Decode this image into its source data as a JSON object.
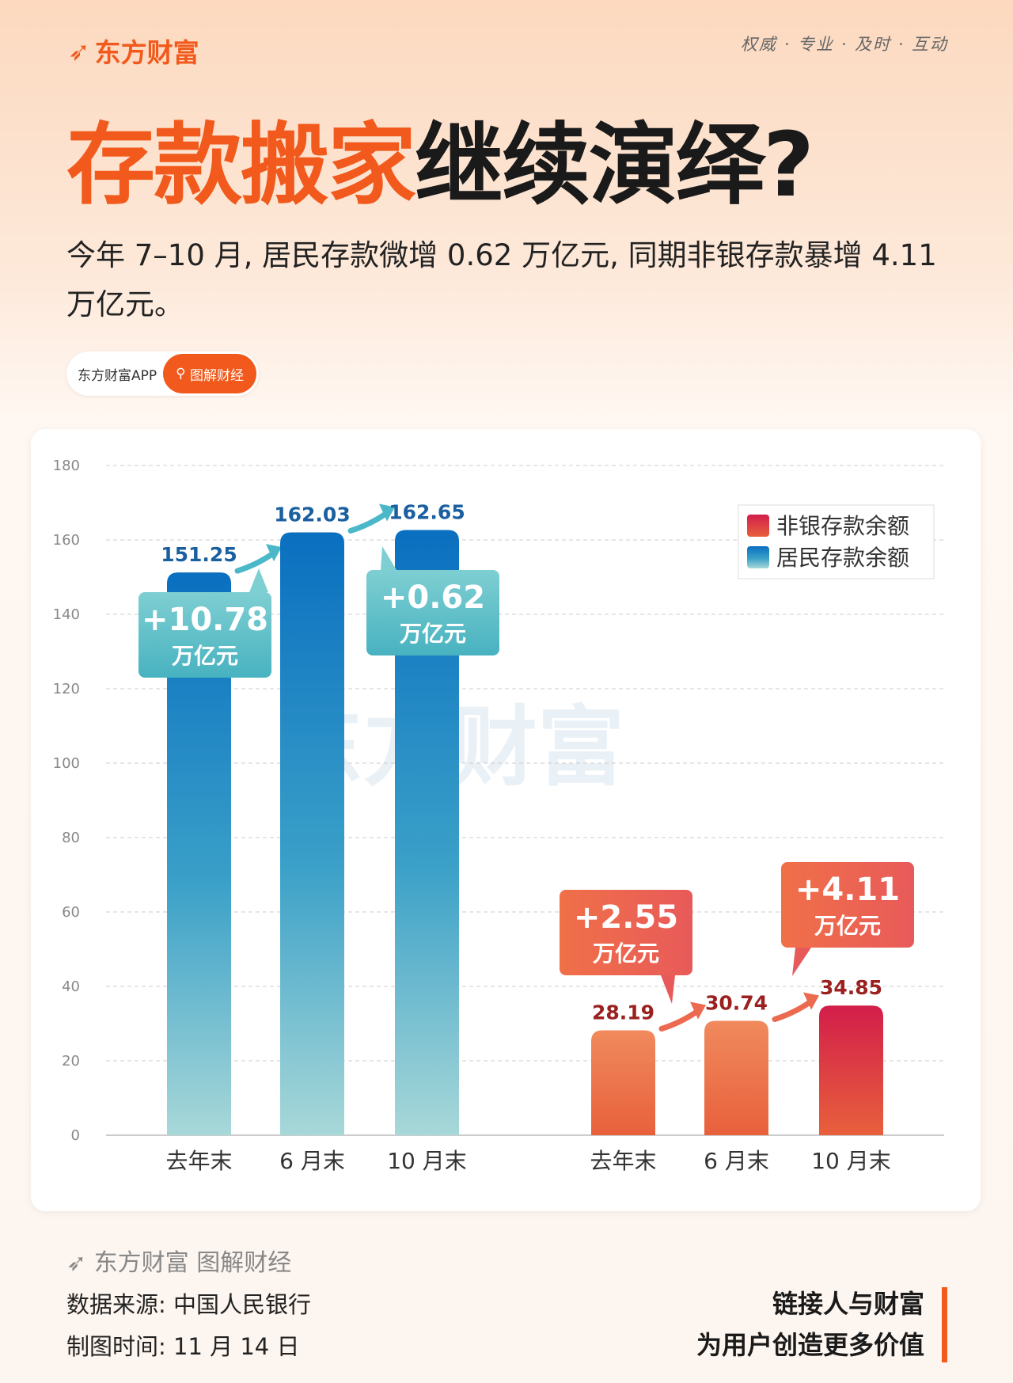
{
  "brand": {
    "logo": "东方财富",
    "slogan": "权威 · 专业 · 及时 · 互动",
    "accent": "#f15a1c"
  },
  "header": {
    "title_orange": "存款搬家",
    "title_black": "继续演绎?",
    "subtitle": "今年 7–10 月, 居民存款微增 0.62 万亿元, 同期非银存款暴增 4.11 万亿元。"
  },
  "pill": {
    "app": "东方财富APP",
    "search": "图解财经"
  },
  "chart_data": {
    "type": "bar",
    "ylim": [
      0,
      180
    ],
    "yticks": [
      0,
      20,
      40,
      60,
      80,
      100,
      120,
      140,
      160,
      180
    ],
    "grid": true,
    "legend": "top-right",
    "watermark": "东方财富",
    "groups": [
      {
        "name": "居民存款余额",
        "categories": [
          "去年末",
          "6 月末",
          "10 月末"
        ],
        "values": [
          151.25,
          162.03,
          162.65
        ],
        "labels": [
          "151.25",
          "162.03",
          "162.65"
        ],
        "color_top": "#0a6fc0",
        "color_bottom": "#a8d8d8",
        "callouts": [
          {
            "value": "+10.78",
            "unit": "万亿元"
          },
          {
            "value": "+0.62",
            "unit": "万亿元"
          }
        ]
      },
      {
        "name": "非银存款余额",
        "categories": [
          "去年末",
          "6 月末",
          "10 月末"
        ],
        "values": [
          28.19,
          30.74,
          34.85
        ],
        "labels": [
          "28.19",
          "30.74",
          "34.85"
        ],
        "color_top": "#f08a5d",
        "color_bottom": "#e8603c",
        "callouts": [
          {
            "value": "+2.55",
            "unit": "万亿元"
          },
          {
            "value": "+4.11",
            "unit": "万亿元"
          }
        ]
      }
    ],
    "legend_items": [
      "非银存款余额",
      "居民存款余额"
    ]
  },
  "footer": {
    "brand": "东方财富 图解财经",
    "source": "数据来源: 中国人民银行",
    "date": "制图时间: 11 月 14 日",
    "tagline1": "链接人与财富",
    "tagline2": "为用户创造更多价值"
  }
}
